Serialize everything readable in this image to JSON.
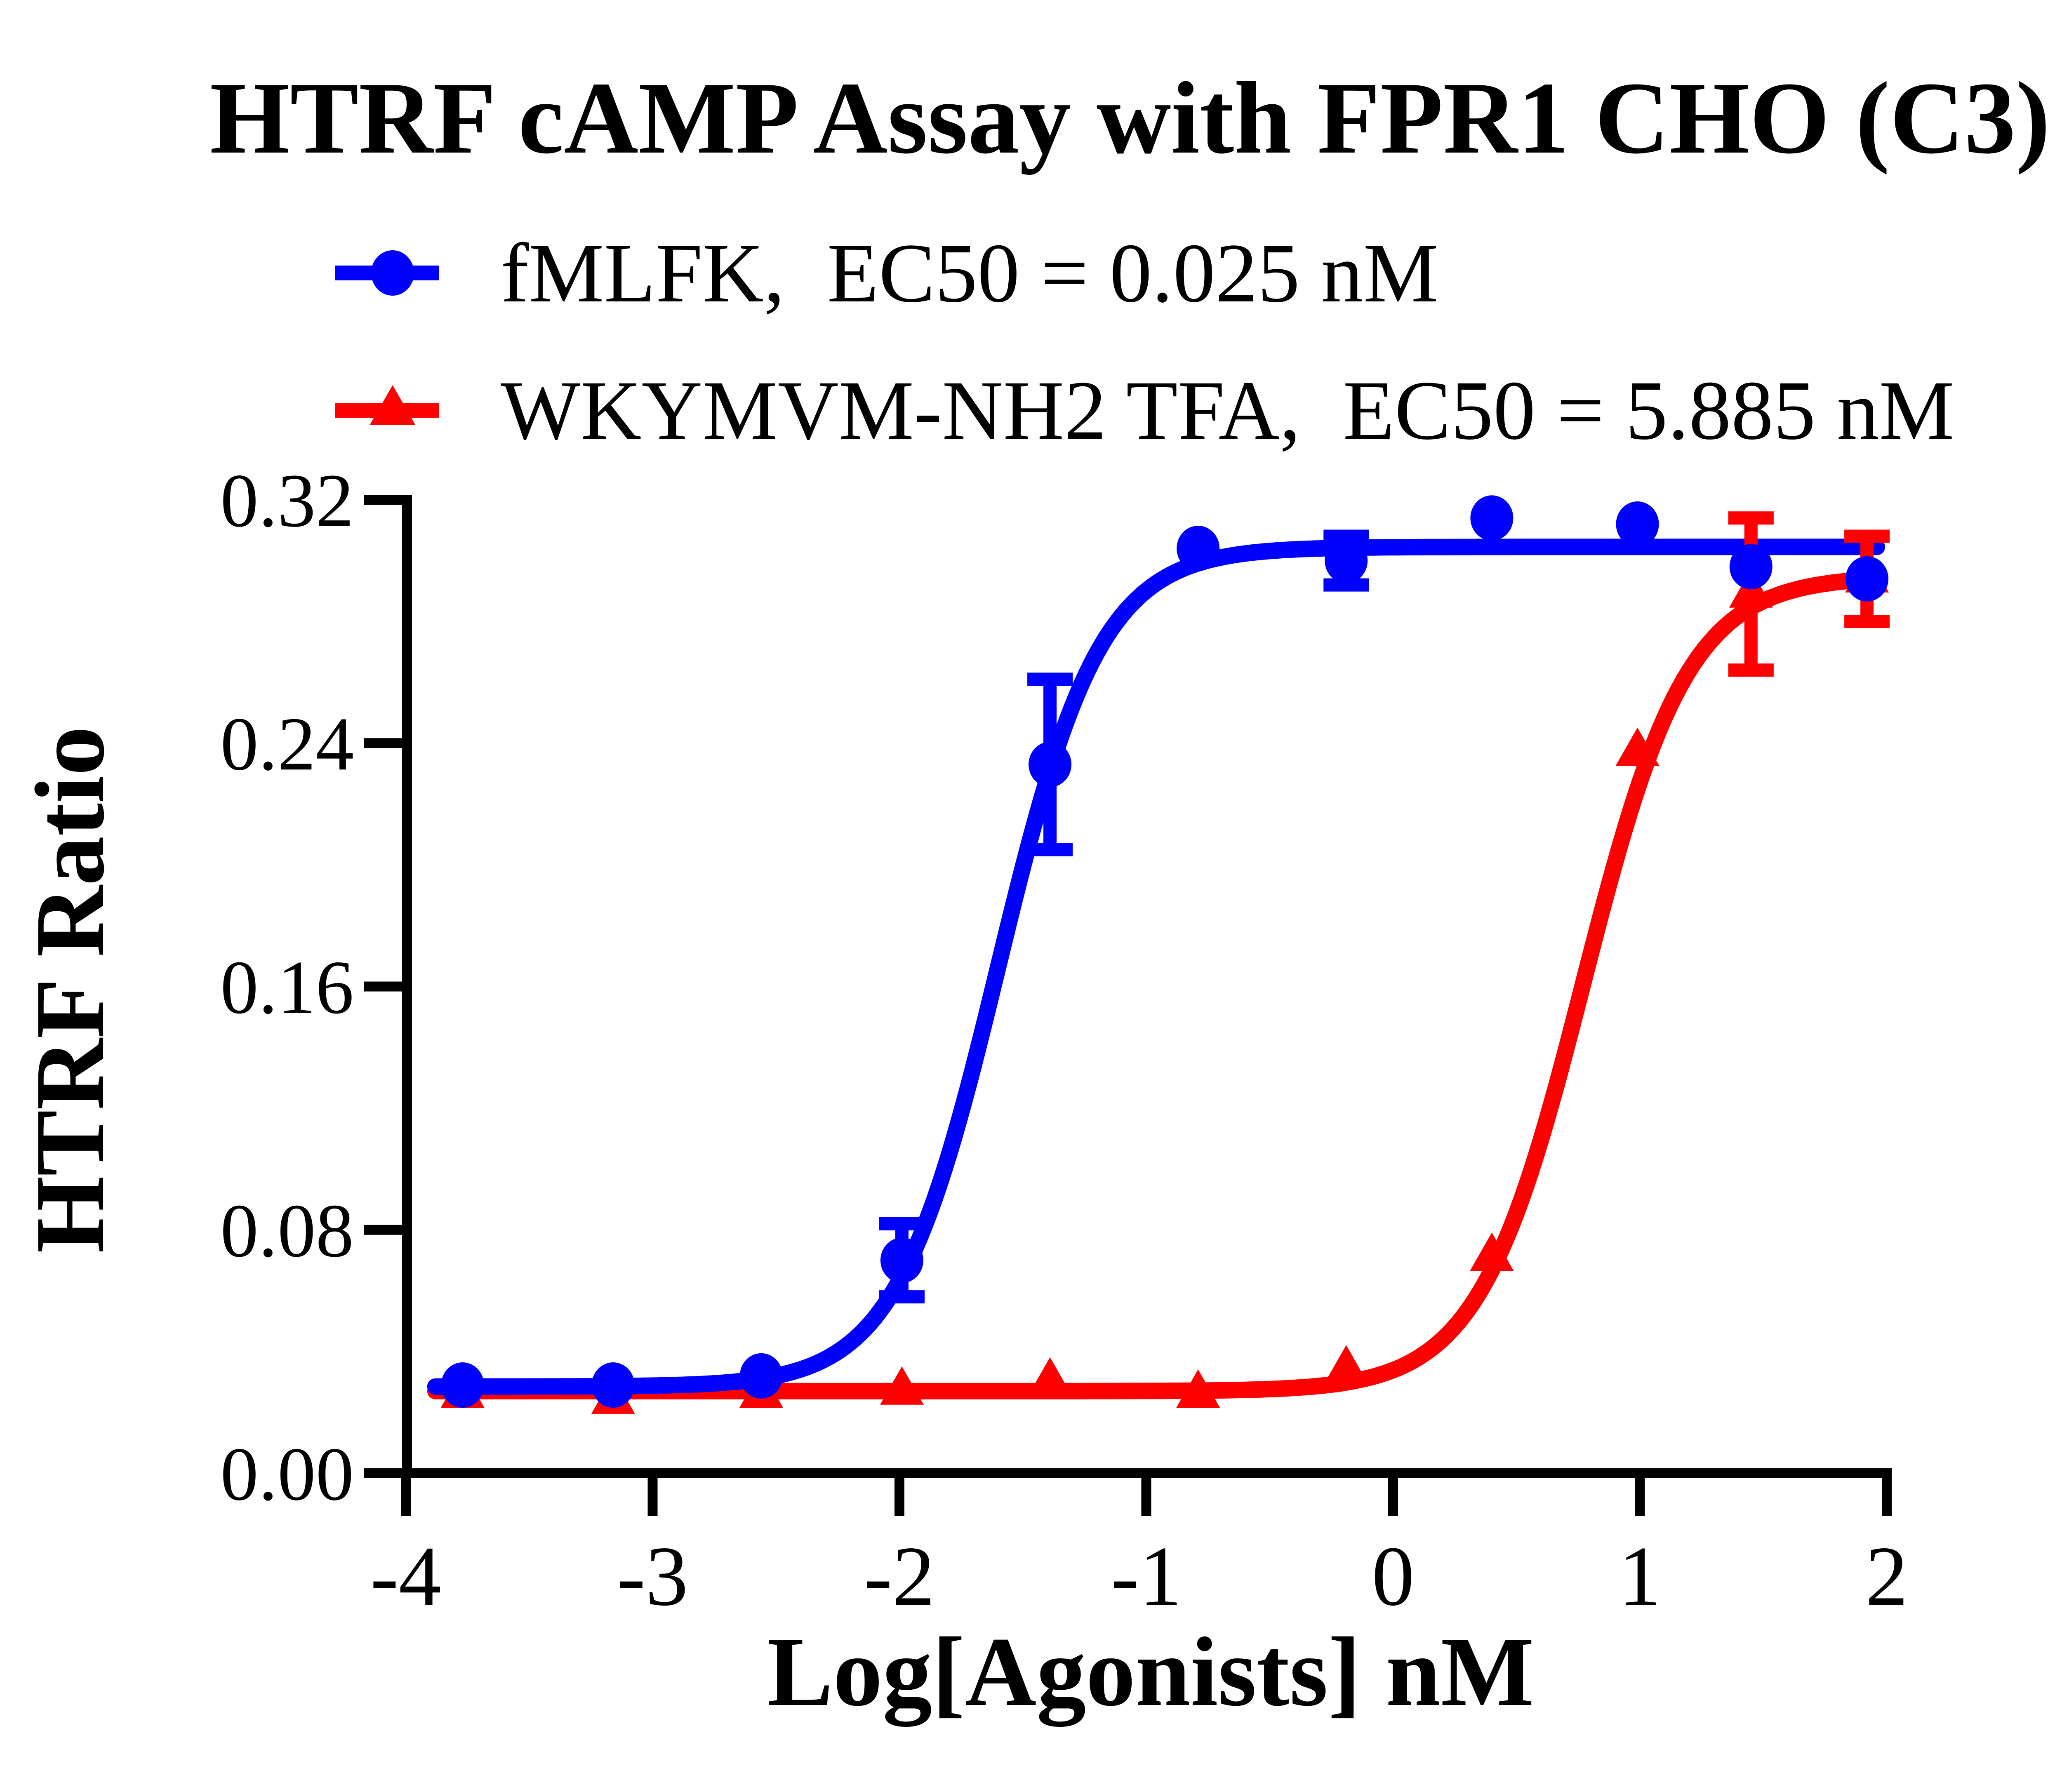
{
  "title": "HTRF cAMP Assay with FPR1 CHO (C3)",
  "legend": {
    "items": [
      {
        "label": "fMLFK,  EC50 = 0.025 nM",
        "color": "#0000ff",
        "marker": "circle"
      },
      {
        "label": "WKYMVM-NH2 TFA,  EC50 = 5.885 nM",
        "color": "#ff0000",
        "marker": "triangle"
      }
    ]
  },
  "axes": {
    "x": {
      "label": "Log[Agonists] nM",
      "tick_labels": [
        "-4",
        "-3",
        "-2",
        "-1",
        "0",
        "1",
        "2"
      ],
      "tick_values": [
        -4,
        -3,
        -2,
        -1,
        0,
        1,
        2
      ]
    },
    "y": {
      "label": "HTRF Ratio",
      "tick_labels": [
        "0.00",
        "0.08",
        "0.16",
        "0.24",
        "0.32"
      ],
      "tick_values": [
        0,
        0.08,
        0.16,
        0.24,
        0.32
      ]
    }
  },
  "chart_data": {
    "type": "scatter",
    "title": "HTRF cAMP Assay with FPR1 CHO (C3)",
    "xlabel": "Log[Agonists] nM",
    "ylabel": "HTRF Ratio",
    "xlim": [
      -4,
      2
    ],
    "ylim": [
      0,
      0.32
    ],
    "grid": false,
    "legend_position": "top-left",
    "x": [
      -3.77,
      -3.16,
      -2.56,
      -1.99,
      -1.39,
      -0.79,
      -0.19,
      0.4,
      0.99,
      1.45,
      1.92
    ],
    "series": [
      {
        "id": "fmlfk",
        "name": "fMLFK",
        "ec50_nM": 0.025,
        "color": "#0000ff",
        "marker": "circle",
        "y": [
          0.029,
          0.029,
          0.032,
          0.07,
          0.233,
          0.304,
          0.3,
          0.314,
          0.312,
          0.298,
          0.294
        ],
        "yerr": [
          0,
          0,
          0,
          0.012,
          0.028,
          0,
          0.008,
          0,
          0,
          0,
          0
        ],
        "fit": {
          "bottom": 0.0285,
          "top": 0.3045,
          "logEC50": -1.6,
          "hill": 2.1
        }
      },
      {
        "id": "wkymvm",
        "name": "WKYMVM-NH2 TFA",
        "ec50_nM": 5.885,
        "color": "#ff0000",
        "marker": "triangle",
        "y": [
          0.026,
          0.024,
          0.026,
          0.027,
          0.03,
          0.026,
          0.034,
          0.071,
          0.237,
          0.289,
          0.294
        ],
        "yerr": [
          0,
          0,
          0,
          0,
          0,
          0,
          0,
          0,
          0,
          0.025,
          0.014
        ],
        "fit": {
          "bottom": 0.027,
          "top": 0.295,
          "logEC50": 0.77,
          "hill": 2.05
        }
      }
    ]
  }
}
